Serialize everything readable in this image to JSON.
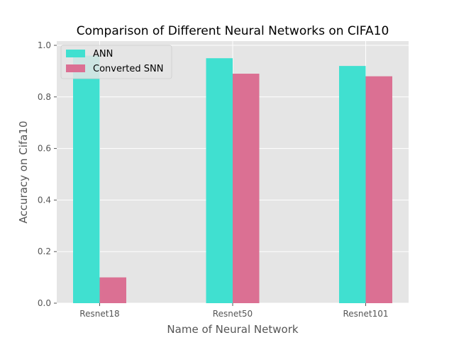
{
  "chart_data": {
    "type": "bar",
    "title": "Comparison of Different Neural Networks on CIFA10",
    "xlabel": "Name of Neural Network",
    "ylabel": "Accuracy on Cifa10",
    "categories": [
      "Resnet18",
      "Resnet50",
      "Resnet101"
    ],
    "series": [
      {
        "name": "ANN",
        "values": [
          0.96,
          0.95,
          0.92
        ],
        "color": "#40E0D0"
      },
      {
        "name": "Converted SNN",
        "values": [
          0.1,
          0.89,
          0.88
        ],
        "color": "#DB7093"
      }
    ],
    "ylim": [
      0,
      1.0
    ],
    "yticks": [
      "0.0",
      "0.2",
      "0.4",
      "0.6",
      "0.8",
      "1.0"
    ],
    "grid": true,
    "legend_position": "top-left",
    "style": "ggplot"
  }
}
